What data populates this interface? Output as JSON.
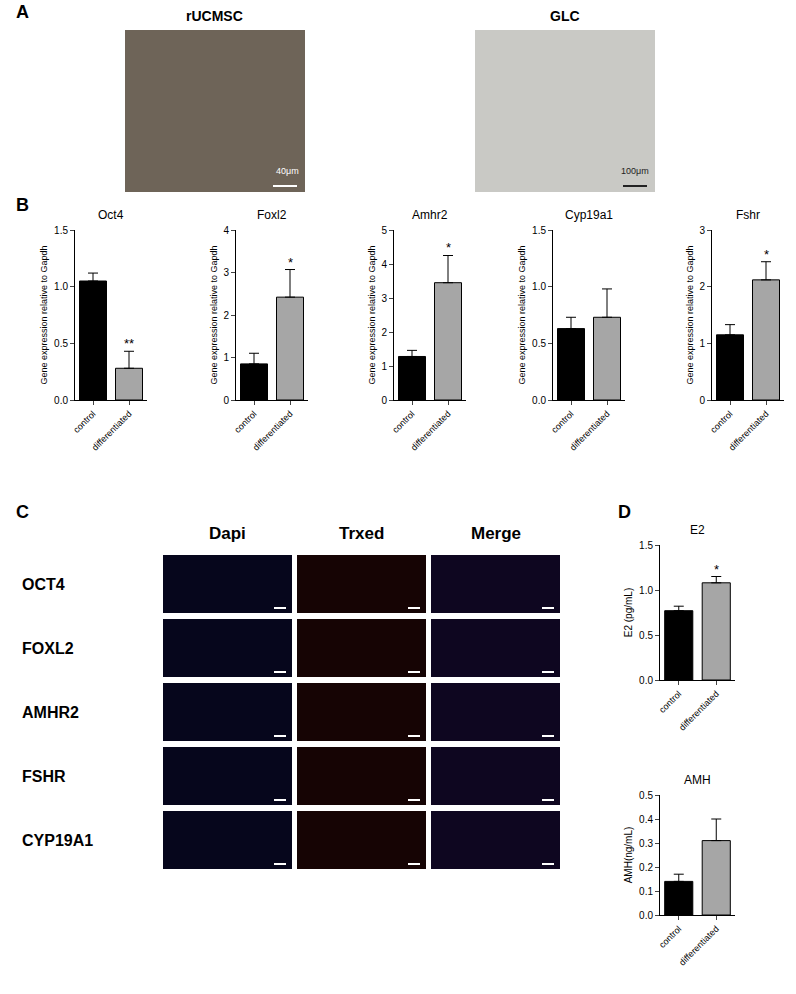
{
  "panel_labels": [
    "A",
    "B",
    "C",
    "D"
  ],
  "panel_a": {
    "images": [
      {
        "title": "rUCMSC",
        "scale_bar": "40μm"
      },
      {
        "title": "GLC",
        "scale_bar": "100μm"
      }
    ]
  },
  "panel_c": {
    "columns": [
      "Dapi",
      "Trxed",
      "Merge"
    ],
    "rows": [
      "OCT4",
      "FOXL2",
      "AMHR2",
      "FSHR",
      "CYP19A1"
    ]
  },
  "chart_data": [
    {
      "type": "bar",
      "title": "Oct4",
      "y_label": "Gene expression relative to Gapdh",
      "categories": [
        "control",
        "differentiated"
      ],
      "values": [
        1.05,
        0.28
      ],
      "errors": [
        0.07,
        0.15
      ],
      "colors": [
        "#000000",
        "#a6a6a6"
      ],
      "ylim": [
        0,
        1.5
      ],
      "yticks": [
        {
          "value": 0,
          "label": "0.0"
        },
        {
          "value": 0.5,
          "label": "0.5"
        },
        {
          "value": 1,
          "label": "1.0"
        },
        {
          "value": 1.5,
          "label": "1.5"
        }
      ],
      "annotations": [
        {
          "category": "differentiated",
          "text": "**"
        }
      ],
      "grid": false
    },
    {
      "type": "bar",
      "title": "Foxl2",
      "y_label": "Gene expression relative to Gapdh",
      "categories": [
        "control",
        "differentiated"
      ],
      "values": [
        0.85,
        2.42
      ],
      "errors": [
        0.25,
        0.65
      ],
      "colors": [
        "#000000",
        "#a6a6a6"
      ],
      "ylim": [
        0,
        4
      ],
      "yticks": [
        0,
        1,
        2,
        3,
        4
      ],
      "annotations": [
        {
          "category": "differentiated",
          "text": "*"
        }
      ],
      "grid": false
    },
    {
      "type": "bar",
      "title": "Amhr2",
      "y_label": "Gene expression relative to Gapdh",
      "categories": [
        "control",
        "differentiated"
      ],
      "values": [
        1.28,
        3.45
      ],
      "errors": [
        0.18,
        0.8
      ],
      "colors": [
        "#000000",
        "#a6a6a6"
      ],
      "ylim": [
        0,
        5
      ],
      "yticks": [
        0,
        1,
        2,
        3,
        4,
        5
      ],
      "annotations": [
        {
          "category": "differentiated",
          "text": "*"
        }
      ],
      "grid": false
    },
    {
      "type": "bar",
      "title": "Cyp19a1",
      "y_label": "Gene expression relative to Gapdh",
      "categories": [
        "control",
        "differentiated"
      ],
      "values": [
        0.63,
        0.73
      ],
      "errors": [
        0.1,
        0.25
      ],
      "colors": [
        "#000000",
        "#a6a6a6"
      ],
      "ylim": [
        0,
        1.5
      ],
      "yticks": [
        {
          "value": 0,
          "label": "0.0"
        },
        {
          "value": 0.5,
          "label": "0.5"
        },
        {
          "value": 1,
          "label": "1.0"
        },
        {
          "value": 1.5,
          "label": "1.5"
        }
      ],
      "annotations": [],
      "grid": false
    },
    {
      "type": "bar",
      "title": "Fshr",
      "y_label": "Gene expression relative to Gapdh",
      "categories": [
        "control",
        "differentiated"
      ],
      "values": [
        1.15,
        2.12
      ],
      "errors": [
        0.18,
        0.32
      ],
      "colors": [
        "#000000",
        "#a6a6a6"
      ],
      "ylim": [
        0,
        3
      ],
      "yticks": [
        0,
        1,
        2,
        3
      ],
      "annotations": [
        {
          "category": "differentiated",
          "text": "*"
        }
      ],
      "grid": false
    },
    {
      "type": "bar",
      "title": "E2",
      "y_label": "E2 (pg/mL)",
      "categories": [
        "control",
        "differentiated"
      ],
      "values": [
        0.77,
        1.08
      ],
      "errors": [
        0.05,
        0.07
      ],
      "colors": [
        "#000000",
        "#a6a6a6"
      ],
      "ylim": [
        0,
        1.5
      ],
      "yticks": [
        {
          "value": 0,
          "label": "0.0"
        },
        {
          "value": 0.5,
          "label": "0.5"
        },
        {
          "value": 1,
          "label": "1.0"
        },
        {
          "value": 1.5,
          "label": "1.5"
        }
      ],
      "annotations": [
        {
          "category": "differentiated",
          "text": "*"
        }
      ],
      "grid": false
    },
    {
      "type": "bar",
      "title": "AMH",
      "y_label": "AMH(ng/mL)",
      "categories": [
        "control",
        "differentiated"
      ],
      "values": [
        0.14,
        0.31
      ],
      "errors": [
        0.03,
        0.09
      ],
      "colors": [
        "#000000",
        "#a6a6a6"
      ],
      "ylim": [
        0,
        0.5
      ],
      "yticks": [
        {
          "value": 0,
          "label": "0.0"
        },
        {
          "value": 0.1,
          "label": "0.1"
        },
        {
          "value": 0.2,
          "label": "0.2"
        },
        {
          "value": 0.3,
          "label": "0.3"
        },
        {
          "value": 0.4,
          "label": "0.4"
        },
        {
          "value": 0.5,
          "label": "0.5"
        }
      ],
      "annotations": [],
      "grid": false
    }
  ]
}
